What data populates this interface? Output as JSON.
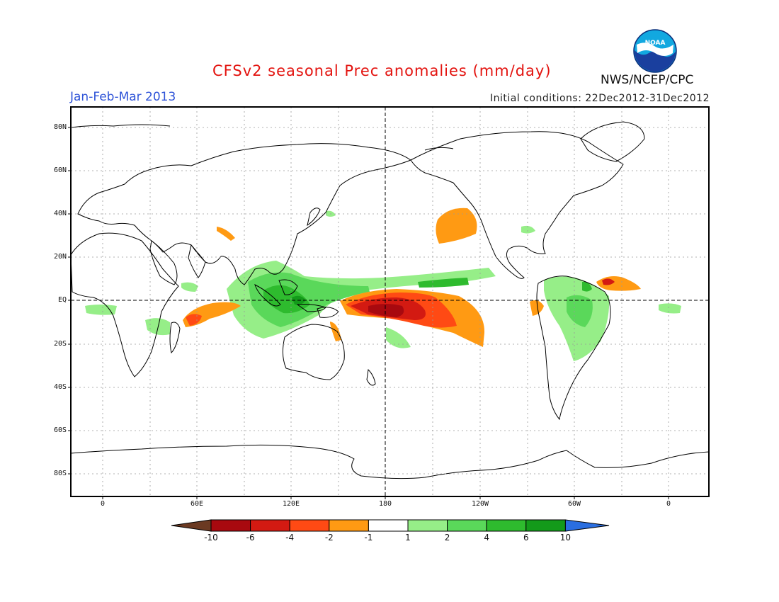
{
  "header": {
    "title": "CFSv2 seasonal Prec anomalies (mm/day)",
    "season": "Jan-Feb-Mar 2013",
    "init_conditions": "Initial conditions: 22Dec2012-31Dec2012",
    "agency": "NWS/NCEP/CPC",
    "logo_text": "NOAA"
  },
  "map": {
    "lat_labels": [
      "80N",
      "60N",
      "40N",
      "20N",
      "EQ",
      "20S",
      "40S",
      "60S",
      "80S"
    ],
    "lon_labels": [
      "0",
      "60E",
      "120E",
      "180",
      "120W",
      "60W",
      "0"
    ],
    "grid": true
  },
  "colorbar": {
    "labels": [
      "-10",
      "-6",
      "-4",
      "-2",
      "-1",
      "1",
      "2",
      "4",
      "6",
      "10"
    ],
    "colors": [
      "#6b3a22",
      "#a8090f",
      "#d31a12",
      "#ff4a14",
      "#ff9a13",
      "#ffffff",
      "#96ee88",
      "#5ad85a",
      "#2ebb2e",
      "#139a1a",
      "#2a6ee0"
    ]
  }
}
